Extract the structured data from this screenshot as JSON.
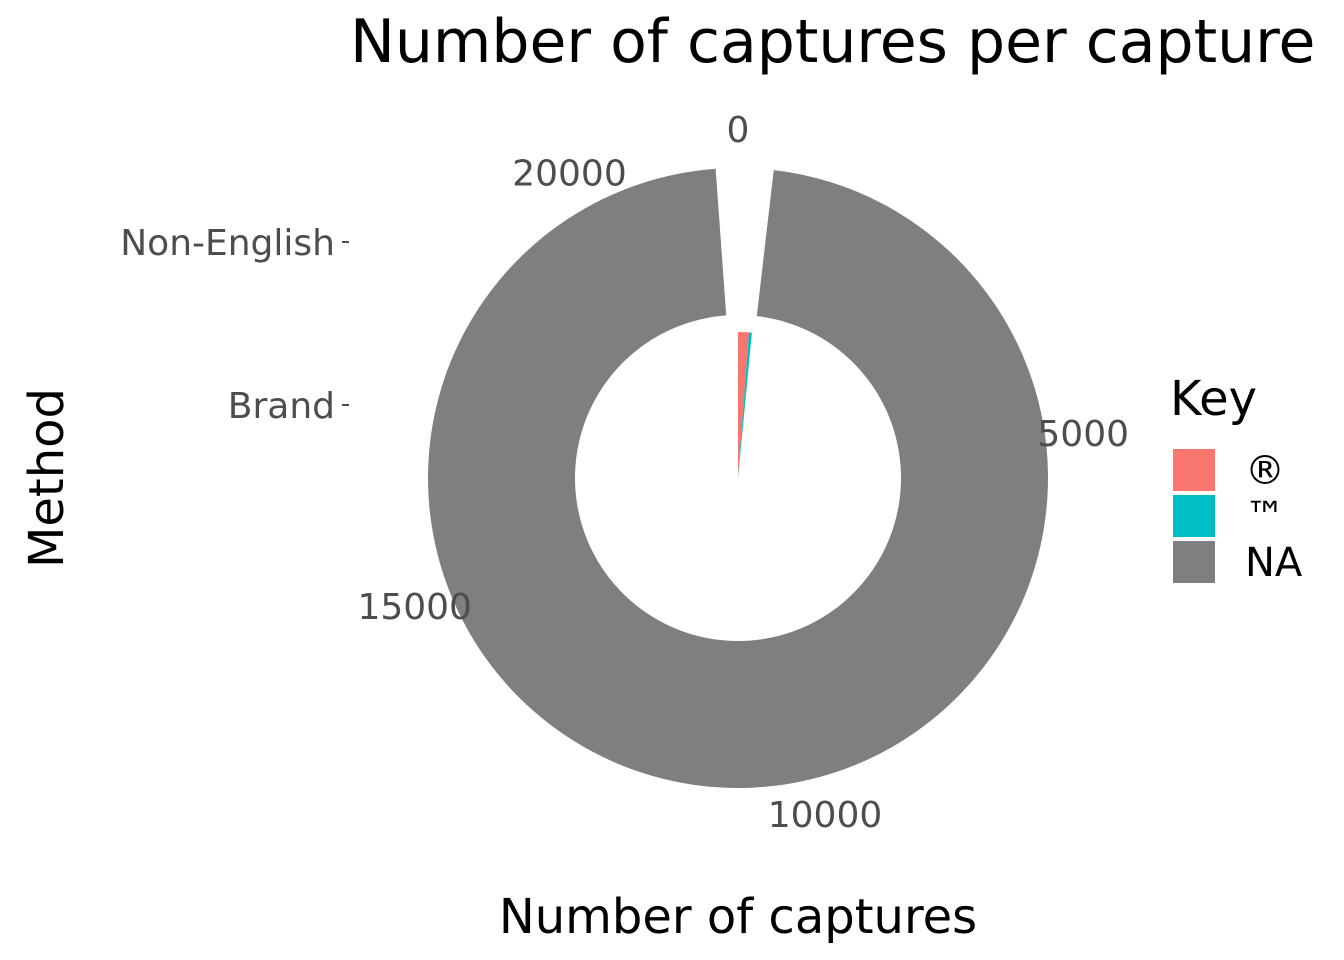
{
  "chart_data": {
    "type": "pie",
    "title": "Number of captures per capture",
    "xlabel": "Number of captures",
    "ylabel": "Method",
    "rings": [
      "Brand",
      "Non-English"
    ],
    "radial_ticks": [
      0,
      5000,
      10000,
      15000,
      20000
    ],
    "theta_max": 21750,
    "legend": {
      "title": "Key",
      "position": "right",
      "entries": [
        {
          "label": "®",
          "color": "#F8766D"
        },
        {
          "label": "™",
          "color": "#00BFC4"
        },
        {
          "label": "NA",
          "color": "#7F7F7F"
        }
      ]
    },
    "series": [
      {
        "ring": "Brand",
        "key": "®",
        "start": 0,
        "value": 260,
        "color": "#F8766D"
      },
      {
        "ring": "Brand",
        "key": "™",
        "start": 260,
        "value": 70,
        "color": "#00BFC4"
      },
      {
        "ring": "Brand",
        "key": "NA",
        "start": 0,
        "value": 0,
        "color": "#7F7F7F"
      },
      {
        "ring": "Non-English",
        "key": "®",
        "start": 0,
        "value": 0,
        "color": "#F8766D"
      },
      {
        "ring": "Non-English",
        "key": "™",
        "start": 0,
        "value": 0,
        "color": "#00BFC4"
      },
      {
        "ring": "Non-English",
        "key": "NA",
        "start": 400,
        "value": 21100,
        "color": "#7F7F7F"
      }
    ]
  }
}
